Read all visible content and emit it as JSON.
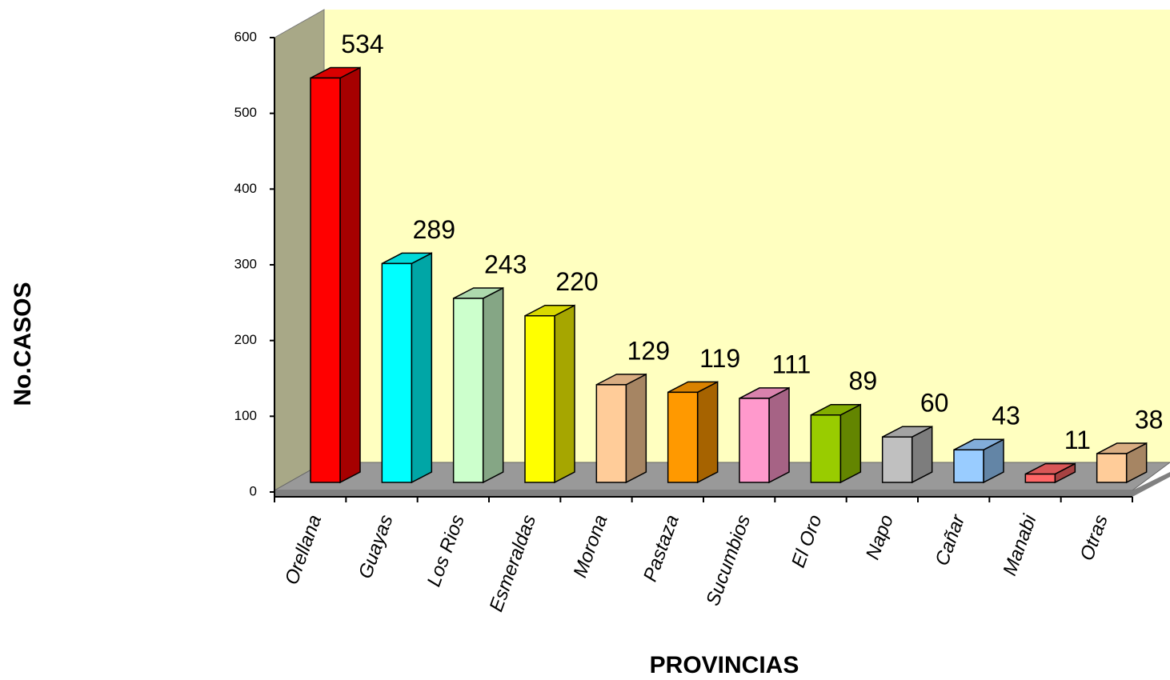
{
  "chart_data": {
    "type": "bar3d",
    "categories": [
      "Orellana",
      "Guayas",
      "Los Rios",
      "Esmeraldas",
      "Morona",
      "Pastaza",
      "Sucumbios",
      "El Oro",
      "Napo",
      "Cañar",
      "Manabi",
      "Otras"
    ],
    "values": [
      534,
      289,
      243,
      220,
      129,
      119,
      111,
      89,
      60,
      43,
      11,
      38
    ],
    "colors": [
      "#ff0000",
      "#00ffff",
      "#ccffcc",
      "#ffff00",
      "#ffcc99",
      "#ff9900",
      "#ff99cc",
      "#99cc00",
      "#c0c0c0",
      "#99ccff",
      "#ff6666",
      "#ffcc99"
    ],
    "ylim": [
      0,
      600
    ],
    "yticks": [
      0,
      100,
      200,
      300,
      400,
      500,
      600
    ],
    "ylabel": "No.CASOS",
    "xlabel": "PROVINCIAS"
  }
}
